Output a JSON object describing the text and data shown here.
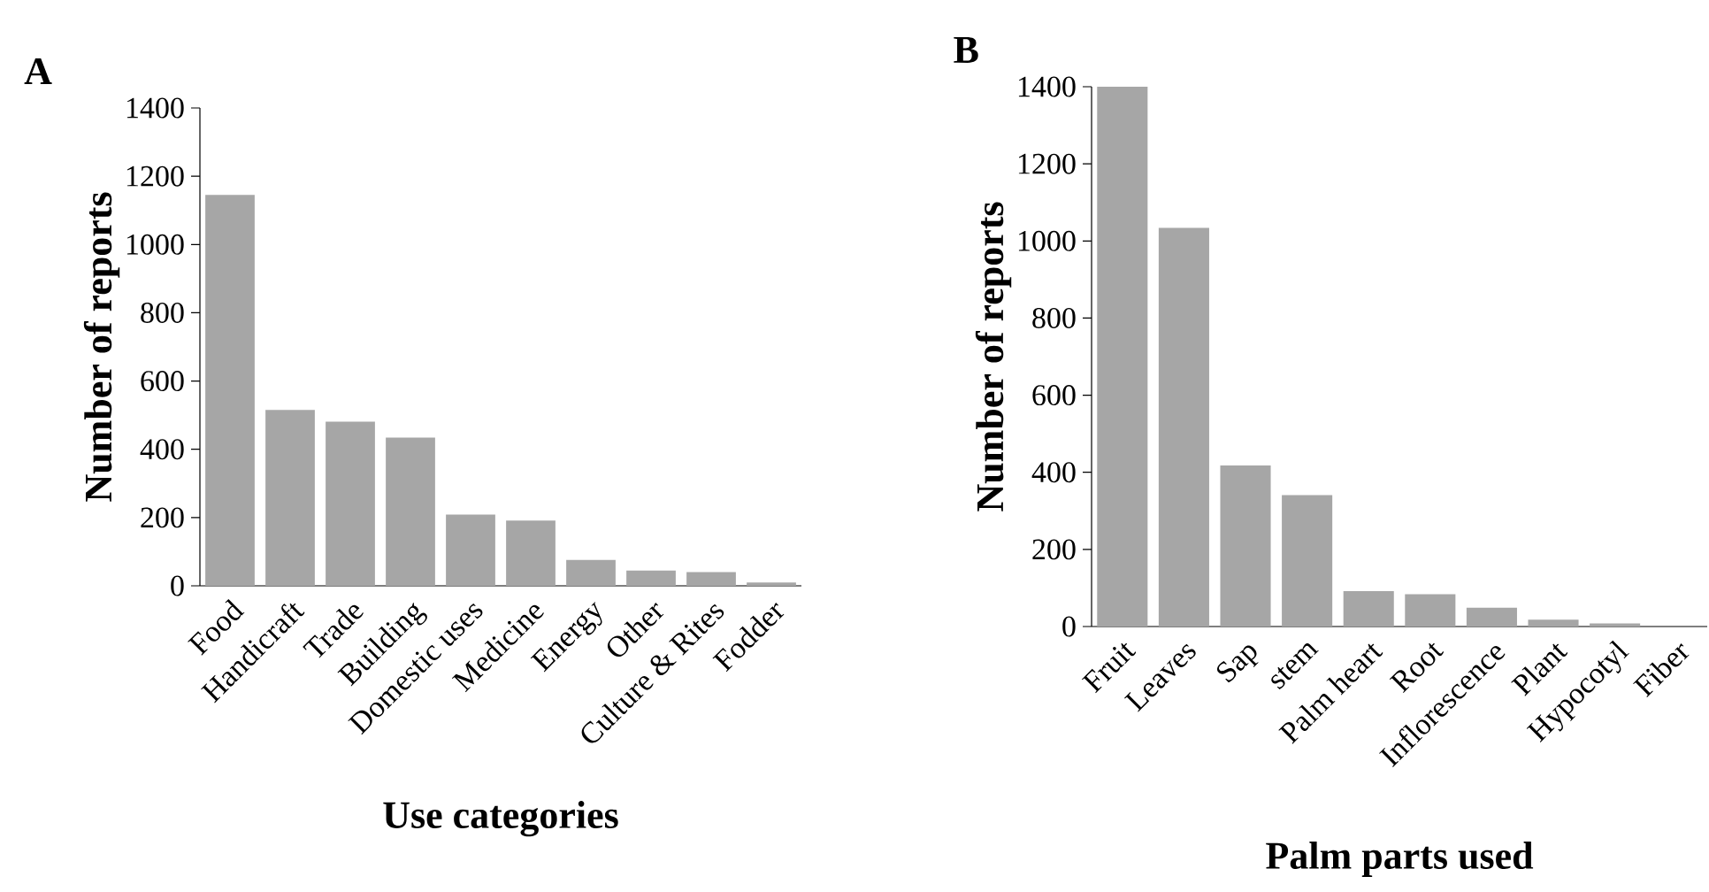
{
  "chart_data": [
    {
      "type": "bar",
      "title": "A",
      "xlabel": "Use categories",
      "ylabel": "Number of reports",
      "color": "#a6a6a6",
      "ylim": [
        0,
        1400
      ],
      "yticks": [
        0,
        200,
        400,
        600,
        800,
        1000,
        1200,
        1400
      ],
      "categories": [
        "Food",
        "Handicraft",
        "Trade",
        "Building",
        "Domestic uses",
        "Medicine",
        "Energy",
        "Other",
        "Culture & Rites",
        "Fodder"
      ],
      "values": [
        1145,
        515,
        481,
        434,
        209,
        191,
        76,
        45,
        40,
        10
      ]
    },
    {
      "type": "bar",
      "title": "B",
      "xlabel": "Palm parts used",
      "ylabel": "Number of reports",
      "color": "#a6a6a6",
      "ylim": [
        0,
        1400
      ],
      "yticks": [
        0,
        200,
        400,
        600,
        800,
        1000,
        1200,
        1400
      ],
      "categories": [
        "Fruit",
        "Leaves",
        "Sap",
        "stem",
        "Palm heart",
        "Root",
        "Inflorescence",
        "Plant",
        "Hypocotyl",
        "Fiber"
      ],
      "values": [
        1400,
        1034,
        418,
        341,
        92,
        84,
        49,
        18,
        8,
        null
      ]
    }
  ]
}
